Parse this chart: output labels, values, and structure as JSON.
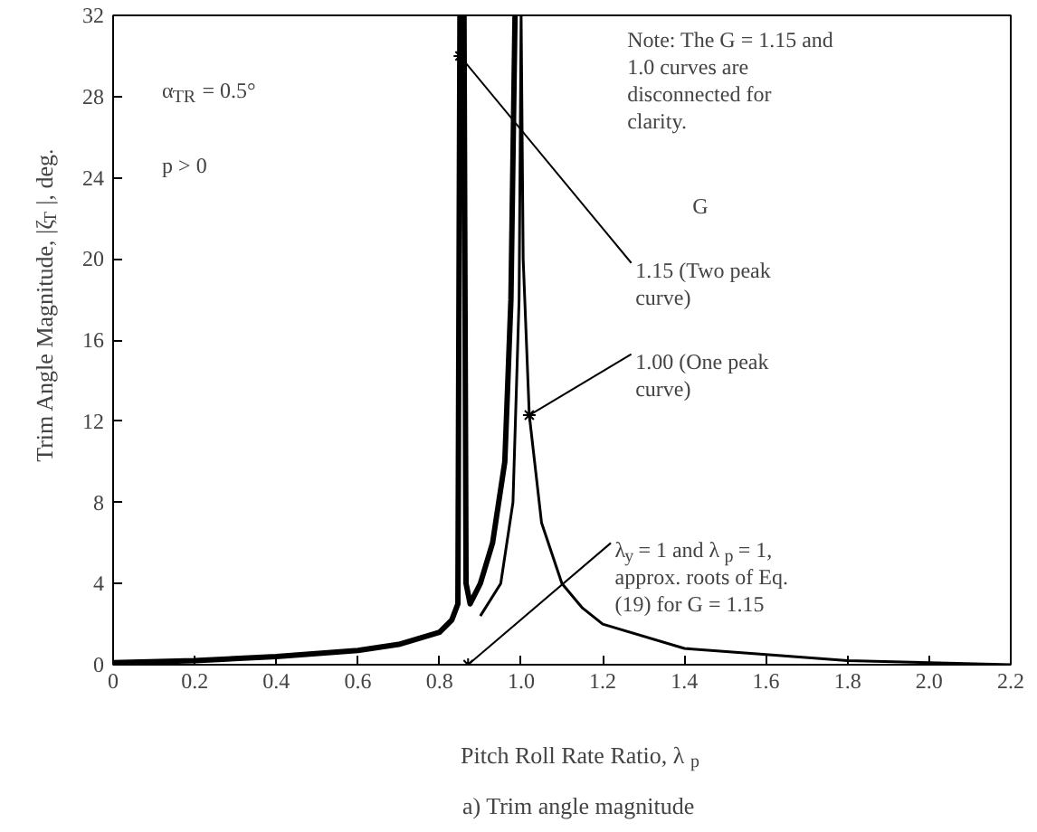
{
  "chart_data": {
    "type": "line",
    "title": "a) Trim angle magnitude",
    "xlabel": "Pitch Roll Rate Ratio, λ$_{p}$",
    "ylabel": "Trim Angle Magnitude, |ζ$_{T}$|, deg.",
    "xlim": [
      0,
      2.2
    ],
    "ylim": [
      0,
      32
    ],
    "xticks": [
      0,
      0.2,
      0.4,
      0.6,
      0.8,
      {
        "value": 1,
        "label": "1.0"
      },
      1.2,
      1.4,
      1.6,
      1.8,
      {
        "value": 2,
        "label": "2.0"
      },
      2.2
    ],
    "yticks": [
      0,
      4,
      8,
      12,
      16,
      20,
      24,
      28,
      32
    ],
    "grid": false,
    "marker": "none",
    "line_style": "solid",
    "series": [
      {
        "color": "#000000",
        "x": [
          0,
          0.2,
          0.4,
          0.6,
          0.7,
          0.8,
          0.83,
          0.845,
          0.85,
          0.86,
          0.865,
          0.875,
          0.9,
          0.93,
          0.96,
          0.975,
          0.985
        ],
        "values": [
          0.1,
          0.2,
          0.4,
          0.7,
          1.0,
          1.6,
          2.2,
          3,
          32,
          32,
          4,
          3,
          4,
          6,
          10,
          18,
          32
        ]
      },
      {
        "color": "#000000",
        "x": [
          0.9,
          0.95,
          0.98,
          0.995,
          1.0,
          1.005,
          1.02,
          1.05,
          1.1,
          1.15,
          1.2,
          1.4,
          1.6,
          1.8,
          2.0,
          2.2
        ],
        "values": [
          2.4,
          4,
          8,
          18,
          32,
          20,
          12.3,
          7,
          4,
          2.8,
          2,
          0.8,
          0.5,
          0.2,
          0.1,
          0
        ]
      }
    ],
    "annotations": [
      "α$_{TR}$ = 0.5°",
      "p > 0",
      "Note: The G = 1.15 and 1.0 curves are disconnected for clarity.",
      "G",
      {
        "text": "1.15 (Two peak curve)",
        "x": 0.85,
        "y": 30
      },
      {
        "text": "1.00 (One peak curve)",
        "x": 1.02,
        "y": 12.3
      },
      {
        "text": "λ$_{y}$ = 1 and λ$_{p}$ = 1, approx. roots of Eq. (19) for G = 1.15",
        "x": 0.87,
        "y": 0
      }
    ]
  }
}
